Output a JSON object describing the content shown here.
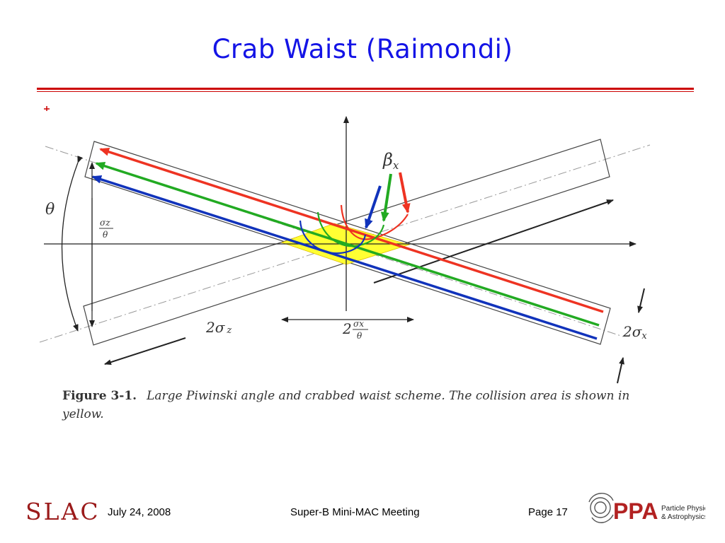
{
  "slide": {
    "title": "Crab Waist (Raimondi)"
  },
  "figure": {
    "caption_label": "Figure 3-1.",
    "caption_text": "Large Piwinski angle and crabbed waist scheme. The collision area is shown in yellow.",
    "labels": {
      "beta": "β",
      "beta_sub": "x",
      "theta": "θ",
      "two_sigma_z": "2σ",
      "two_sigma_z_sub": "z",
      "two_sigma_x": "2σ",
      "two_sigma_x_sub": "x",
      "sigma_z_over_theta_num": "σz",
      "sigma_z_over_theta_den": "θ",
      "two": "2",
      "sigma_x_over_theta_num": "σx",
      "sigma_x_over_theta_den": "θ"
    },
    "colors": {
      "red": "#ee3322",
      "green": "#22aa22",
      "blue": "#1133bb",
      "collision": "#ffff33"
    }
  },
  "footer": {
    "logo_left": "SLAC",
    "date": "July 24, 2008",
    "meeting": "Super-B Mini-MAC Meeting",
    "page": "Page 17",
    "logo_right_main": "PPA",
    "logo_right_line1": "Particle Physics",
    "logo_right_line2": "& Astrophysics"
  }
}
